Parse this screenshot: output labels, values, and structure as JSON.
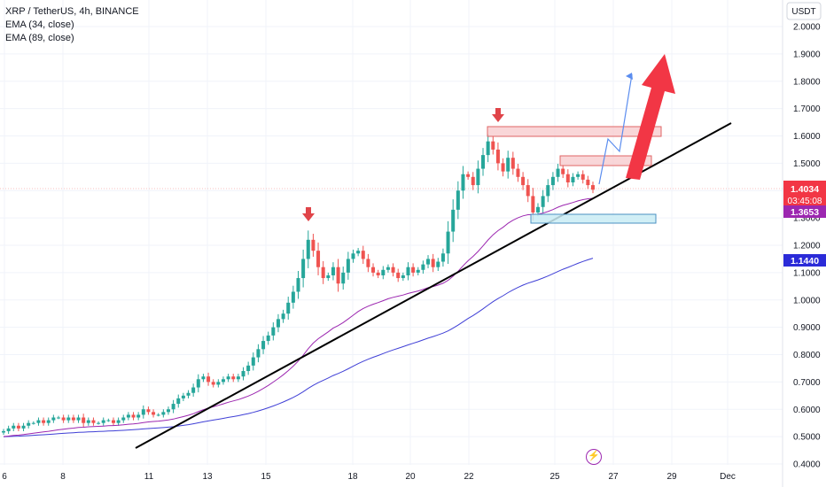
{
  "header": {
    "title": "XRP / TetherUS, 4h, BINANCE",
    "indicators": [
      "EMA (34, close)",
      "EMA (89, close)"
    ]
  },
  "axis": {
    "currency": "USDT",
    "y_ticks": [
      "2.0000",
      "1.9000",
      "1.8000",
      "1.7000",
      "1.6000",
      "1.5000",
      "1.4000",
      "1.3000",
      "1.2000",
      "1.1000",
      "1.0000",
      "0.9000",
      "0.8000",
      "0.7000",
      "0.6000",
      "0.5000",
      "0.4000"
    ],
    "x_ticks": [
      "6",
      "8",
      "11",
      "13",
      "15",
      "18",
      "20",
      "22",
      "25",
      "27",
      "29",
      "Dec"
    ]
  },
  "price_tags": {
    "last_price": "1.4034",
    "countdown": "03:45:08",
    "ema34": "1.3653",
    "ema89": "1.1440"
  },
  "colors": {
    "up": "#26a69a",
    "down": "#ef5350",
    "ema34": "#9c27b0",
    "ema89": "#3f3fd6",
    "trendline": "#000000",
    "arrow": "#f23645"
  },
  "icons": {
    "bolt": "lightning-icon"
  },
  "chart_data": {
    "type": "candlestick",
    "title": "XRP / TetherUS, 4h, BINANCE",
    "ylim": [
      0.4,
      2.05
    ],
    "x_labels": [
      "6",
      "8",
      "11",
      "13",
      "15",
      "18",
      "20",
      "22",
      "25",
      "27",
      "29",
      "Dec"
    ],
    "series": [
      {
        "name": "EMA (34, close)",
        "last_value": 1.3653
      },
      {
        "name": "EMA (89, close)",
        "last_value": 1.144
      }
    ],
    "last_price": 1.4034,
    "closes": [
      0.52,
      0.53,
      0.54,
      0.53,
      0.54,
      0.55,
      0.55,
      0.56,
      0.55,
      0.56,
      0.57,
      0.57,
      0.56,
      0.57,
      0.56,
      0.57,
      0.55,
      0.56,
      0.55,
      0.55,
      0.56,
      0.56,
      0.55,
      0.56,
      0.57,
      0.58,
      0.57,
      0.58,
      0.6,
      0.59,
      0.58,
      0.58,
      0.59,
      0.6,
      0.62,
      0.64,
      0.65,
      0.66,
      0.68,
      0.71,
      0.72,
      0.7,
      0.69,
      0.7,
      0.71,
      0.72,
      0.71,
      0.72,
      0.74,
      0.76,
      0.79,
      0.82,
      0.85,
      0.87,
      0.9,
      0.93,
      0.95,
      0.99,
      1.03,
      1.08,
      1.15,
      1.22,
      1.18,
      1.12,
      1.08,
      1.09,
      1.12,
      1.06,
      1.1,
      1.15,
      1.17,
      1.18,
      1.15,
      1.12,
      1.1,
      1.09,
      1.11,
      1.12,
      1.1,
      1.08,
      1.09,
      1.12,
      1.1,
      1.11,
      1.13,
      1.15,
      1.12,
      1.14,
      1.17,
      1.25,
      1.33,
      1.4,
      1.46,
      1.45,
      1.42,
      1.48,
      1.53,
      1.58,
      1.55,
      1.5,
      1.47,
      1.52,
      1.48,
      1.45,
      1.42,
      1.38,
      1.32,
      1.34,
      1.38,
      1.42,
      1.45,
      1.48,
      1.46,
      1.43,
      1.45,
      1.46,
      1.44,
      1.42,
      1.4034
    ]
  }
}
